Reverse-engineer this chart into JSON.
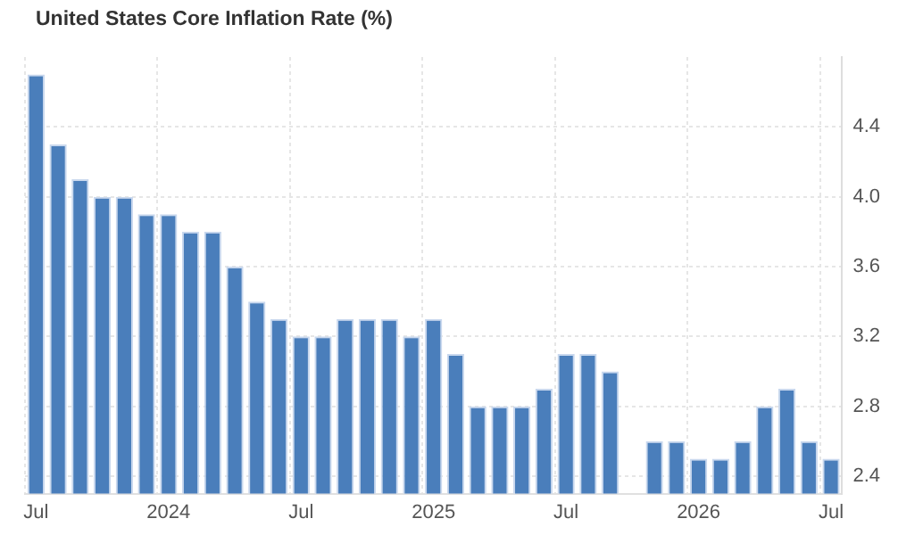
{
  "chart_data": {
    "type": "bar",
    "title": "United States Core Inflation Rate (%)",
    "categories": [
      "Jul",
      null,
      null,
      null,
      null,
      null,
      "2024",
      null,
      null,
      null,
      null,
      null,
      "Jul",
      null,
      null,
      null,
      null,
      null,
      "2025",
      null,
      null,
      null,
      null,
      null,
      "Jul",
      null,
      null,
      null,
      null,
      null,
      "2026",
      null,
      null,
      null,
      null,
      null,
      "Jul"
    ],
    "values": [
      4.7,
      4.3,
      4.1,
      4.0,
      4.0,
      3.9,
      3.9,
      3.8,
      3.8,
      3.6,
      3.4,
      3.3,
      3.2,
      3.2,
      3.3,
      3.3,
      3.3,
      3.2,
      3.3,
      3.1,
      2.8,
      2.8,
      2.8,
      2.9,
      3.1,
      3.1,
      3.0,
      null,
      2.6,
      2.6,
      2.5,
      2.5,
      2.6,
      2.8,
      2.9,
      2.6,
      2.5
    ],
    "color": "#4a7ebb",
    "ylim": [
      2.3,
      4.8
    ],
    "yticks": [
      2.4,
      2.8,
      3.2,
      3.6,
      {
        "value": 4,
        "label": "4.0"
      },
      4.4
    ],
    "grid": true,
    "legend": false
  }
}
